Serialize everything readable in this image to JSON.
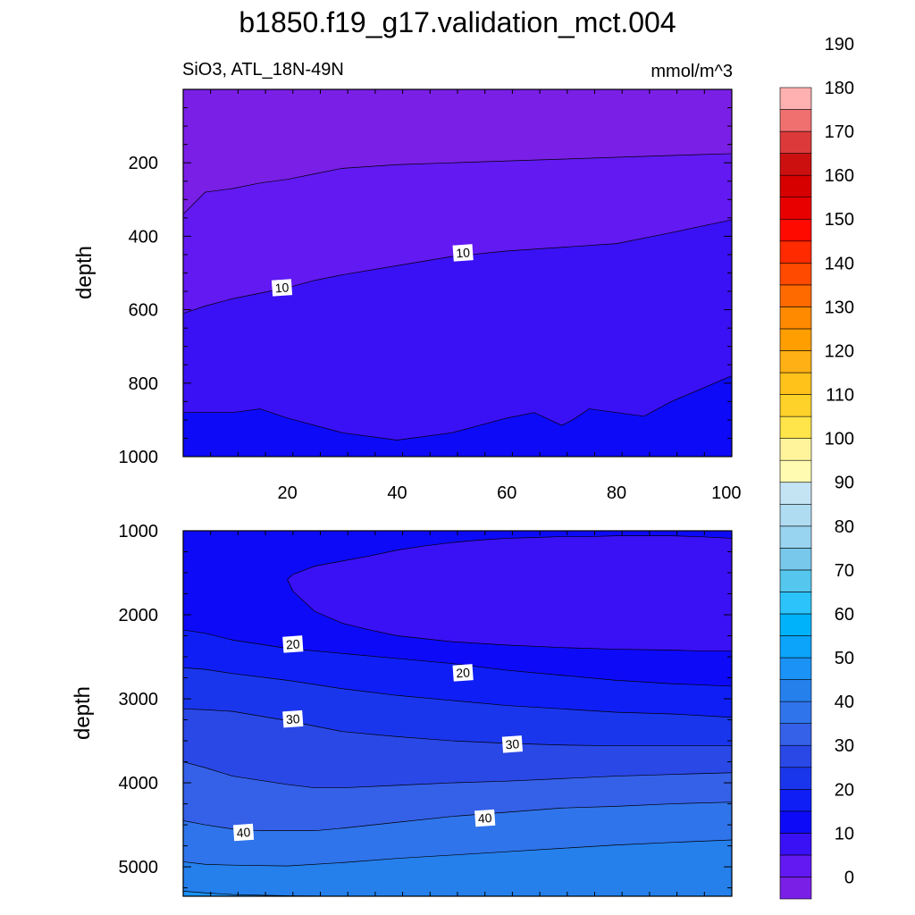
{
  "title": "b1850.f19_g17.validation_mct.004",
  "colors": {
    "levels": [
      "#7a1fe6",
      "#6219f2",
      "#3a10f5",
      "#0d0af8",
      "#0e1ef5",
      "#1a36ec",
      "#2a48e6",
      "#3560e8",
      "#2f74ea",
      "#2580ec",
      "#1a92f6",
      "#0ba4fa",
      "#00b2fa",
      "#2cc3fa",
      "#55c7ee",
      "#78c8ec",
      "#98d4f0",
      "#b0dcf2",
      "#c4e4f4",
      "#fffbb0",
      "#fff39c",
      "#ffe44a",
      "#ffd22a",
      "#ffc21a",
      "#ffb014",
      "#ff9e00",
      "#ff8a00",
      "#ff6a00",
      "#ff4a00",
      "#ff2a00",
      "#ff0a00",
      "#e80000",
      "#d60000",
      "#cc1010",
      "#dc3a3a",
      "#f07070",
      "#ffb0b0"
    ],
    "line": "#000000"
  },
  "chart_data": [
    {
      "type": "contour",
      "subtitle": "SiO3, ATL_18N-49N",
      "units": "mmol/m^3",
      "ylabel": "depth",
      "xlim": [
        1,
        101
      ],
      "ylim": [
        0,
        1000
      ],
      "y_reversed": true,
      "xticks": [
        20,
        40,
        60,
        80,
        100
      ],
      "xtick_labels": [
        "20",
        "40",
        "60",
        "80",
        "100"
      ],
      "yticks": [
        200,
        400,
        600,
        800,
        1000
      ],
      "ytick_labels": [
        "200",
        "400",
        "600",
        "800",
        "1000"
      ],
      "regions": [
        {
          "level": 0,
          "value": "0-5"
        },
        {
          "level": 1,
          "value": "5-10"
        },
        {
          "level": 2,
          "value": "10-15"
        },
        {
          "level": 3,
          "value": "15-20"
        }
      ],
      "contours": [
        {
          "value": 5,
          "x": [
            1,
            5,
            10,
            15,
            20,
            25,
            30,
            40,
            50,
            60,
            70,
            80,
            90,
            101
          ],
          "y": [
            340,
            280,
            270,
            255,
            245,
            230,
            215,
            205,
            200,
            195,
            190,
            185,
            180,
            175
          ]
        },
        {
          "value": 10,
          "x": [
            1,
            5,
            10,
            15,
            20,
            25,
            30,
            40,
            50,
            60,
            70,
            80,
            90,
            101
          ],
          "y": [
            610,
            590,
            570,
            555,
            540,
            520,
            505,
            480,
            455,
            440,
            430,
            420,
            390,
            355
          ]
        },
        {
          "value": 15,
          "x": [
            1,
            10,
            15,
            20,
            30,
            40,
            50,
            60,
            65,
            70,
            72,
            75,
            80,
            85,
            90,
            101
          ],
          "y": [
            880,
            880,
            870,
            895,
            935,
            955,
            935,
            895,
            880,
            915,
            900,
            870,
            880,
            890,
            850,
            780
          ]
        }
      ],
      "contour_labels": [
        {
          "text": "10",
          "x": 19,
          "y": 540
        },
        {
          "text": "10",
          "x": 52,
          "y": 445
        }
      ]
    },
    {
      "type": "contour",
      "ylabel": "depth",
      "xlim": [
        1,
        101
      ],
      "ylim": [
        1000,
        5350
      ],
      "y_reversed": true,
      "xticks": [
        20,
        40,
        60,
        80,
        100
      ],
      "xtick_labels": [],
      "yticks": [
        1000,
        2000,
        3000,
        4000,
        5000
      ],
      "ytick_labels": [
        "1000",
        "2000",
        "3000",
        "4000",
        "5000"
      ],
      "regions": [
        {
          "level": 3,
          "value": "15-20"
        },
        {
          "level": 4,
          "value": "20-25"
        },
        {
          "level": 5,
          "value": "25-30"
        },
        {
          "level": 6,
          "value": "30-35"
        },
        {
          "level": 7,
          "value": "35-40"
        },
        {
          "level": 8,
          "value": "40-45"
        },
        {
          "level": 9,
          "value": "45-50"
        },
        {
          "level": 10,
          "value": "50-55"
        }
      ],
      "contours": [
        {
          "value": 20,
          "x": [
            1,
            5,
            10,
            20,
            30,
            40,
            50,
            60,
            70,
            80,
            90,
            101
          ],
          "y": [
            2180,
            2220,
            2300,
            2400,
            2460,
            2520,
            2580,
            2660,
            2720,
            2780,
            2820,
            2850
          ]
        },
        {
          "value": 25,
          "x": [
            1,
            5,
            10,
            20,
            30,
            40,
            50,
            60,
            70,
            80,
            90,
            101
          ],
          "y": [
            2630,
            2650,
            2700,
            2780,
            2880,
            2960,
            3020,
            3080,
            3120,
            3160,
            3180,
            3220
          ]
        },
        {
          "value": 30,
          "x": [
            1,
            5,
            10,
            20,
            30,
            40,
            50,
            60,
            70,
            80,
            90,
            101
          ],
          "y": [
            3120,
            3130,
            3150,
            3260,
            3390,
            3450,
            3500,
            3530,
            3550,
            3560,
            3560,
            3560
          ]
        },
        {
          "value": 35,
          "x": [
            1,
            5,
            10,
            20,
            25,
            30,
            40,
            50,
            60,
            70,
            80,
            90,
            101
          ],
          "y": [
            3750,
            3820,
            3920,
            4020,
            4060,
            4060,
            4030,
            4000,
            3980,
            3950,
            3920,
            3900,
            3880
          ]
        },
        {
          "value": 40,
          "x": [
            1,
            5,
            10,
            15,
            20,
            25,
            30,
            40,
            50,
            60,
            70,
            80,
            90,
            101
          ],
          "y": [
            4450,
            4500,
            4550,
            4570,
            4570,
            4570,
            4540,
            4470,
            4400,
            4350,
            4300,
            4280,
            4250,
            4230
          ]
        },
        {
          "value": 45,
          "x": [
            1,
            5,
            10,
            20,
            30,
            40,
            50,
            60,
            70,
            80,
            90,
            101
          ],
          "y": [
            4940,
            4970,
            4980,
            4990,
            4950,
            4900,
            4860,
            4820,
            4780,
            4740,
            4710,
            4680
          ]
        },
        {
          "value": 50,
          "x": [
            1,
            5,
            10,
            20,
            30,
            101
          ],
          "y": [
            5290,
            5310,
            5330,
            5345,
            5350,
            5350
          ]
        },
        {
          "value": 15,
          "closed": true,
          "x": [
            20,
            21,
            25,
            30,
            35,
            40,
            45,
            50,
            55,
            60,
            65,
            70,
            75,
            80,
            85,
            90,
            95,
            101,
            101,
            95,
            90,
            80,
            70,
            60,
            50,
            40,
            35,
            30,
            25,
            21
          ],
          "y": [
            1580,
            1520,
            1420,
            1360,
            1300,
            1230,
            1180,
            1140,
            1110,
            1090,
            1080,
            1070,
            1070,
            1060,
            1060,
            1060,
            1070,
            1090,
            2430,
            2430,
            2420,
            2410,
            2390,
            2360,
            2320,
            2250,
            2180,
            2100,
            1960,
            1720
          ]
        }
      ],
      "contour_labels": [
        {
          "text": "20",
          "x": 21,
          "y": 2350
        },
        {
          "text": "20",
          "x": 52,
          "y": 2690
        },
        {
          "text": "30",
          "x": 21,
          "y": 3240
        },
        {
          "text": "30",
          "x": 61,
          "y": 3540
        },
        {
          "text": "40",
          "x": 12,
          "y": 4590
        },
        {
          "text": "40",
          "x": 56,
          "y": 4420
        }
      ]
    }
  ],
  "colorbar": {
    "labels": [
      "0",
      "10",
      "20",
      "30",
      "40",
      "50",
      "60",
      "70",
      "80",
      "90",
      "100",
      "110",
      "120",
      "130",
      "140",
      "150",
      "160",
      "170",
      "180",
      "190"
    ]
  }
}
